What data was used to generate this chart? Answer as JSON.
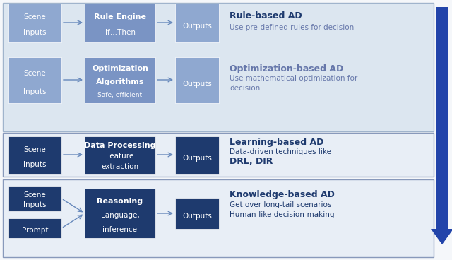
{
  "fig_w": 6.4,
  "fig_h": 3.68,
  "dpi": 100,
  "bg": "#f5f7fa",
  "panel1_bg": "#dce6f0",
  "panel1_border": "#a0b4cc",
  "panel2_bg": "#e8eef6",
  "panel2_border": "#8899bb",
  "panel3_bg": "#e8eef6",
  "panel3_border": "#8899bb",
  "box_light": "#8fa8d0",
  "box_medium": "#7a94c4",
  "box_dark": "#1e3a6e",
  "box_darkest": "#172d55",
  "arrow_col": "#6688bb",
  "big_arrow_col": "#2244aa",
  "text_white": "#ffffff",
  "text_dark": "#1e3a6e",
  "text_mid": "#6677aa",
  "row1": {
    "label": "Rule-based AD",
    "desc1": "Use pre-defined rules for decision",
    "desc2": "",
    "input_text": "Scene\nInputs",
    "mid_text": "Rule Engine\nIf…Then",
    "out_text": "Outputs",
    "label_color": "#1e3a6e",
    "desc_color": "#6677aa",
    "box_in": "#8fa8d0",
    "box_mid": "#7a94c4",
    "box_out": "#8fa8d0"
  },
  "row2": {
    "label": "Optimization-based AD",
    "desc1": "Use mathematical optimization for",
    "desc2": "decision",
    "input_text": "Scene\nInputs",
    "mid_text": "Optimization\nAlgorithms\nSafe, efficient",
    "out_text": "Outputs",
    "label_color": "#6677aa",
    "desc_color": "#6677aa",
    "box_in": "#8fa8d0",
    "box_mid": "#7a94c4",
    "box_out": "#8fa8d0"
  },
  "row3": {
    "label": "Learning-based AD",
    "desc1": "Data-driven techniques like",
    "desc2": "DRL, DIR",
    "input_text": "Scene\nInputs",
    "mid_text": "Data Processing\nFeature\nextraction",
    "out_text": "Outputs",
    "label_color": "#1e3a6e",
    "desc_color": "#1e3a6e",
    "box_in": "#1e3a6e",
    "box_mid": "#1e3a6e",
    "box_out": "#1e3a6e"
  },
  "row4": {
    "label": "Knowledge-based AD",
    "desc1": "Get over long-tail scenarios",
    "desc2": "Human-like decision-making",
    "input_text": "Scene\nInputs",
    "prompt_text": "Prompt",
    "mid_text": "Reasoning\nLanguage,\ninference",
    "out_text": "Outputs",
    "label_color": "#1e3a6e",
    "desc_color": "#1e3a6e",
    "box_in": "#1e3a6e",
    "box_mid": "#1e3a6e",
    "box_out": "#1e3a6e"
  }
}
